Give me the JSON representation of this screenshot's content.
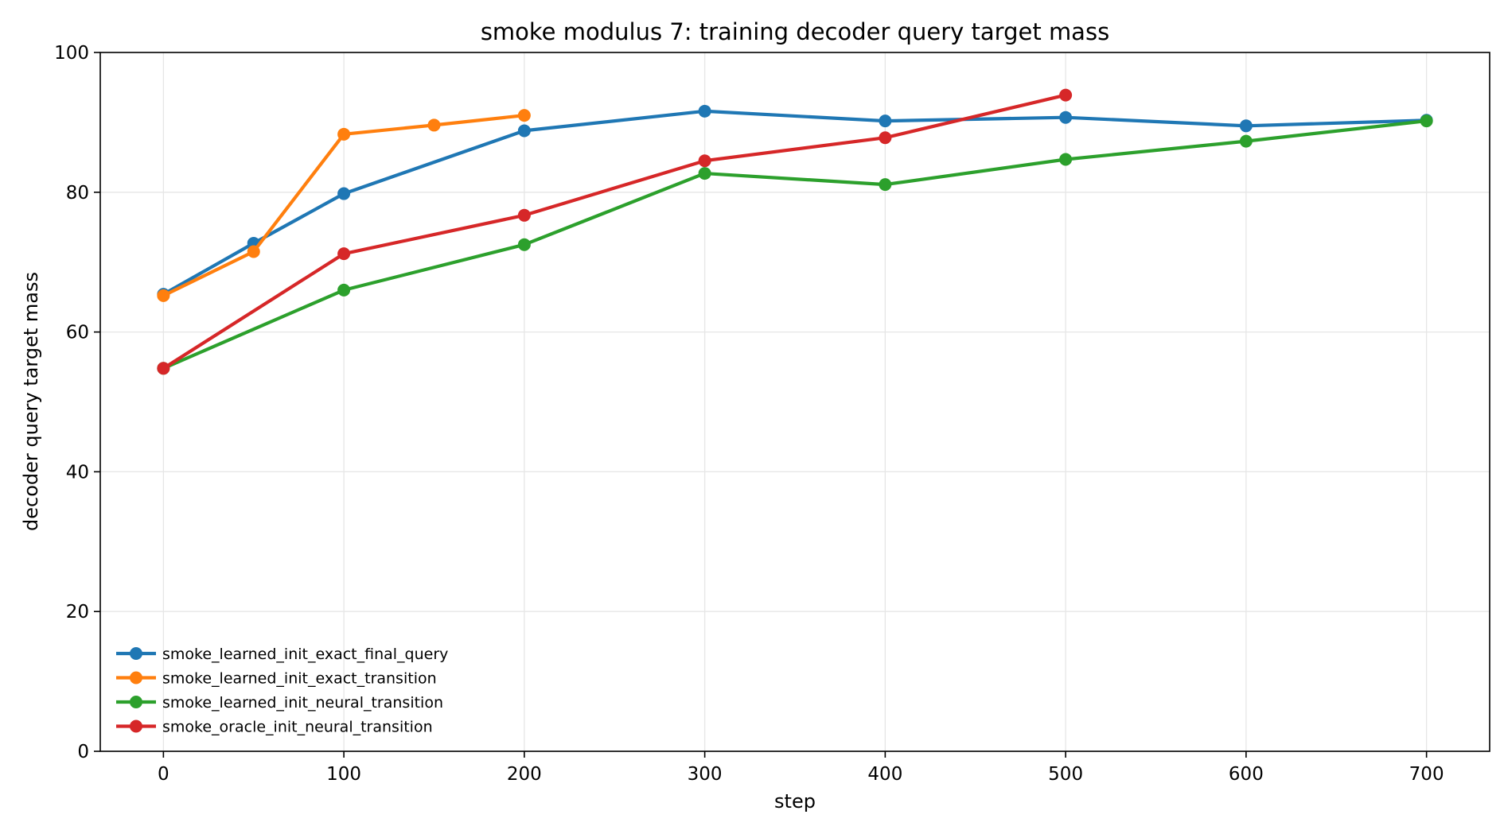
{
  "chart_data": {
    "type": "line",
    "title": "smoke modulus 7: training decoder query target mass",
    "xlabel": "step",
    "ylabel": "decoder query target mass",
    "xlim": [
      -35,
      735
    ],
    "ylim": [
      0,
      100
    ],
    "xticks": [
      0,
      100,
      200,
      300,
      400,
      500,
      600,
      700
    ],
    "yticks": [
      0,
      20,
      40,
      60,
      80,
      100
    ],
    "grid": true,
    "legend_position": "lower-left",
    "series": [
      {
        "name": "smoke_learned_init_exact_final_query",
        "color": "#1f77b4",
        "x": [
          0,
          50,
          100,
          200,
          300,
          400,
          500,
          600,
          700
        ],
        "y": [
          65.4,
          72.7,
          79.8,
          88.8,
          91.6,
          90.2,
          90.7,
          89.5,
          90.3
        ]
      },
      {
        "name": "smoke_learned_init_exact_transition",
        "color": "#ff7f0e",
        "x": [
          0,
          50,
          100,
          150,
          200
        ],
        "y": [
          65.2,
          71.5,
          88.3,
          89.6,
          91.0
        ]
      },
      {
        "name": "smoke_learned_init_neural_transition",
        "color": "#2ca02c",
        "x": [
          0,
          100,
          200,
          300,
          400,
          500,
          600,
          700
        ],
        "y": [
          54.8,
          66.0,
          72.5,
          82.7,
          81.1,
          84.7,
          87.3,
          90.2
        ]
      },
      {
        "name": "smoke_oracle_init_neural_transition",
        "color": "#d62728",
        "x": [
          0,
          100,
          200,
          300,
          400,
          500
        ],
        "y": [
          54.8,
          71.2,
          76.7,
          84.5,
          87.8,
          93.9
        ]
      }
    ]
  }
}
